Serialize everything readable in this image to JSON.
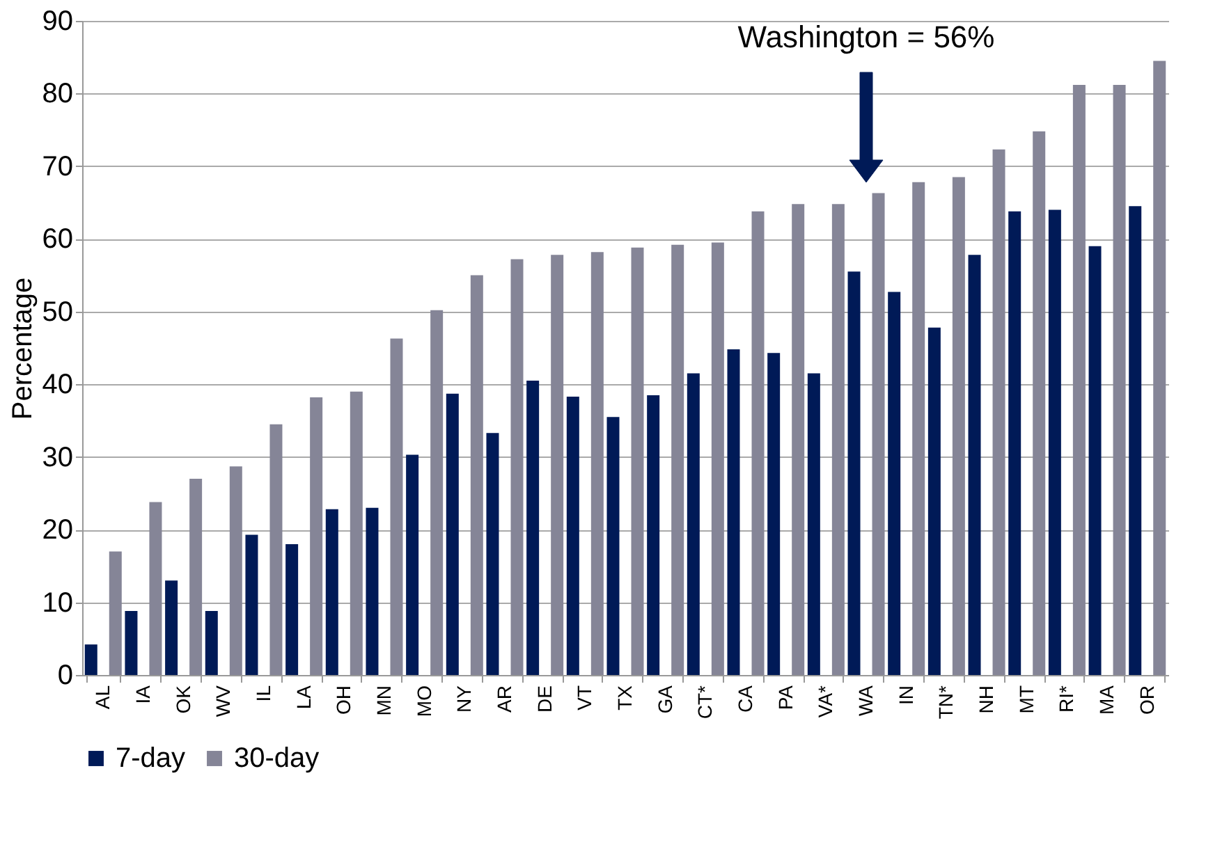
{
  "chart_data": {
    "type": "bar",
    "ylabel": "Percentage",
    "categories": [
      "AL",
      "IA",
      "OK",
      "WV",
      "IL",
      "LA",
      "OH",
      "MN",
      "MO",
      "NY",
      "AR",
      "DE",
      "VT",
      "TX",
      "GA",
      "CT*",
      "CA",
      "PA",
      "VA*",
      "WA",
      "IN",
      "TN*",
      "NH",
      "MT",
      "RI*",
      "MA",
      "OR"
    ],
    "series": [
      {
        "name": "7-day",
        "color": "#001a57",
        "values": [
          4.2,
          8.8,
          13,
          8.8,
          19.3,
          18,
          22.8,
          23,
          30.3,
          38.7,
          33.3,
          40.5,
          38.3,
          35.5,
          38.5,
          41.5,
          44.8,
          44.3,
          41.5,
          55.5,
          52.7,
          47.8,
          57.8,
          63.8,
          64,
          59,
          64.5
        ]
      },
      {
        "name": "30-day",
        "color": "#858597",
        "values": [
          17,
          23.8,
          27,
          28.7,
          34.5,
          38.2,
          39,
          46.3,
          50.2,
          55,
          57.2,
          57.8,
          58.2,
          58.8,
          59.2,
          59.5,
          63.8,
          64.8,
          64.8,
          66.3,
          67.8,
          68.5,
          72.3,
          74.8,
          81.2,
          81.2,
          84.5
        ]
      }
    ],
    "ylim": [
      0,
      90
    ],
    "yticks": [
      0,
      10,
      20,
      30,
      40,
      50,
      60,
      70,
      80,
      90
    ],
    "grid": "y",
    "legend": "bottom",
    "annotations": [
      "Washington = 56%"
    ]
  }
}
